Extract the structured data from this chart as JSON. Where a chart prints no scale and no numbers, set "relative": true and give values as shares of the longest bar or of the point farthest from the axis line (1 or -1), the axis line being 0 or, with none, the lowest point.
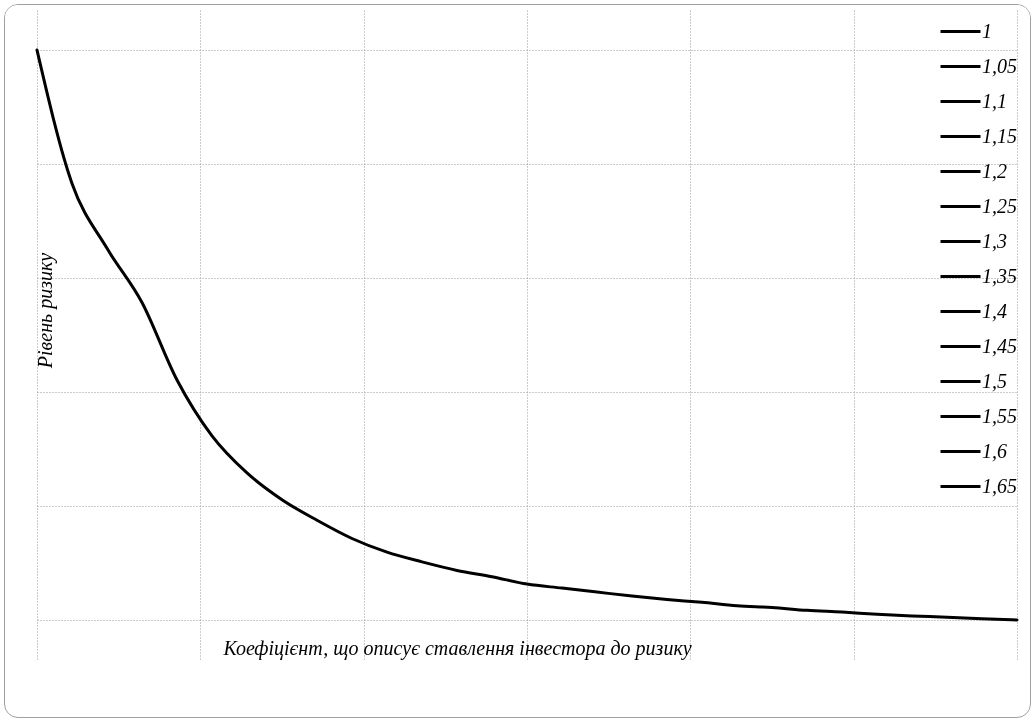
{
  "chart_data": {
    "type": "line",
    "relative": true,
    "xlabel": "Коефіцієнт, що описує ставлення інвестора до ризику",
    "ylabel": "Рівень ризику",
    "categories": [
      null,
      null,
      null,
      null,
      null,
      null,
      null,
      null,
      null,
      null,
      null,
      null,
      null,
      null,
      null,
      null,
      null,
      null,
      null,
      null,
      null,
      null,
      null,
      null,
      null,
      null,
      null,
      null,
      null
    ],
    "series": [
      {
        "name": "1",
        "color": "#000000",
        "values": [
          1.0,
          0.766,
          0.652,
          0.557,
          0.421,
          0.323,
          0.258,
          0.211,
          0.175,
          0.143,
          0.119,
          0.102,
          0.087,
          0.076,
          0.063,
          0.056,
          0.049,
          0.042,
          0.036,
          0.031,
          0.025,
          0.022,
          0.017,
          0.014,
          0.01,
          0.007,
          0.005,
          0.002,
          0.0
        ]
      },
      {
        "name": "1,05",
        "color": "#000000",
        "values": [
          null,
          null,
          null,
          null,
          null,
          null,
          null,
          null,
          null,
          null,
          null,
          null,
          null,
          null,
          null,
          null,
          null,
          null,
          null,
          null,
          null,
          null,
          null,
          null,
          null,
          null,
          null,
          null,
          null
        ]
      },
      {
        "name": "1,1",
        "color": "#000000",
        "values": [
          null,
          null,
          null,
          null,
          null,
          null,
          null,
          null,
          null,
          null,
          null,
          null,
          null,
          null,
          null,
          null,
          null,
          null,
          null,
          null,
          null,
          null,
          null,
          null,
          null,
          null,
          null,
          null,
          null
        ]
      },
      {
        "name": "1,15",
        "color": "#000000",
        "values": [
          null,
          null,
          null,
          null,
          null,
          null,
          null,
          null,
          null,
          null,
          null,
          null,
          null,
          null,
          null,
          null,
          null,
          null,
          null,
          null,
          null,
          null,
          null,
          null,
          null,
          null,
          null,
          null,
          null
        ]
      },
      {
        "name": "1,2",
        "color": "#000000",
        "values": [
          null,
          null,
          null,
          null,
          null,
          null,
          null,
          null,
          null,
          null,
          null,
          null,
          null,
          null,
          null,
          null,
          null,
          null,
          null,
          null,
          null,
          null,
          null,
          null,
          null,
          null,
          null,
          null,
          null
        ]
      },
      {
        "name": "1,25",
        "color": "#000000",
        "values": [
          null,
          null,
          null,
          null,
          null,
          null,
          null,
          null,
          null,
          null,
          null,
          null,
          null,
          null,
          null,
          null,
          null,
          null,
          null,
          null,
          null,
          null,
          null,
          null,
          null,
          null,
          null,
          null,
          null
        ]
      },
      {
        "name": "1,3",
        "color": "#000000",
        "values": [
          null,
          null,
          null,
          null,
          null,
          null,
          null,
          null,
          null,
          null,
          null,
          null,
          null,
          null,
          null,
          null,
          null,
          null,
          null,
          null,
          null,
          null,
          null,
          null,
          null,
          null,
          null,
          null,
          null
        ]
      },
      {
        "name": "1,35",
        "color": "#000000",
        "values": [
          null,
          null,
          null,
          null,
          null,
          null,
          null,
          null,
          null,
          null,
          null,
          null,
          null,
          null,
          null,
          null,
          null,
          null,
          null,
          null,
          null,
          null,
          null,
          null,
          null,
          null,
          null,
          null,
          null
        ]
      },
      {
        "name": "1,4",
        "color": "#000000",
        "values": [
          null,
          null,
          null,
          null,
          null,
          null,
          null,
          null,
          null,
          null,
          null,
          null,
          null,
          null,
          null,
          null,
          null,
          null,
          null,
          null,
          null,
          null,
          null,
          null,
          null,
          null,
          null,
          null,
          null
        ]
      },
      {
        "name": "1,45",
        "color": "#000000",
        "values": [
          null,
          null,
          null,
          null,
          null,
          null,
          null,
          null,
          null,
          null,
          null,
          null,
          null,
          null,
          null,
          null,
          null,
          null,
          null,
          null,
          null,
          null,
          null,
          null,
          null,
          null,
          null,
          null,
          null
        ]
      },
      {
        "name": "1,5",
        "color": "#000000",
        "values": [
          null,
          null,
          null,
          null,
          null,
          null,
          null,
          null,
          null,
          null,
          null,
          null,
          null,
          null,
          null,
          null,
          null,
          null,
          null,
          null,
          null,
          null,
          null,
          null,
          null,
          null,
          null,
          null,
          null
        ]
      },
      {
        "name": "1,55",
        "color": "#000000",
        "values": [
          null,
          null,
          null,
          null,
          null,
          null,
          null,
          null,
          null,
          null,
          null,
          null,
          null,
          null,
          null,
          null,
          null,
          null,
          null,
          null,
          null,
          null,
          null,
          null,
          null,
          null,
          null,
          null,
          null
        ]
      },
      {
        "name": "1,6",
        "color": "#000000",
        "values": [
          null,
          null,
          null,
          null,
          null,
          null,
          null,
          null,
          null,
          null,
          null,
          null,
          null,
          null,
          null,
          null,
          null,
          null,
          null,
          null,
          null,
          null,
          null,
          null,
          null,
          null,
          null,
          null,
          null
        ]
      },
      {
        "name": "1,65",
        "color": "#000000",
        "values": [
          null,
          null,
          null,
          null,
          null,
          null,
          null,
          null,
          null,
          null,
          null,
          null,
          null,
          null,
          null,
          null,
          null,
          null,
          null,
          null,
          null,
          null,
          null,
          null,
          null,
          null,
          null,
          null,
          null
        ]
      }
    ],
    "grid": true,
    "legend": "right"
  }
}
